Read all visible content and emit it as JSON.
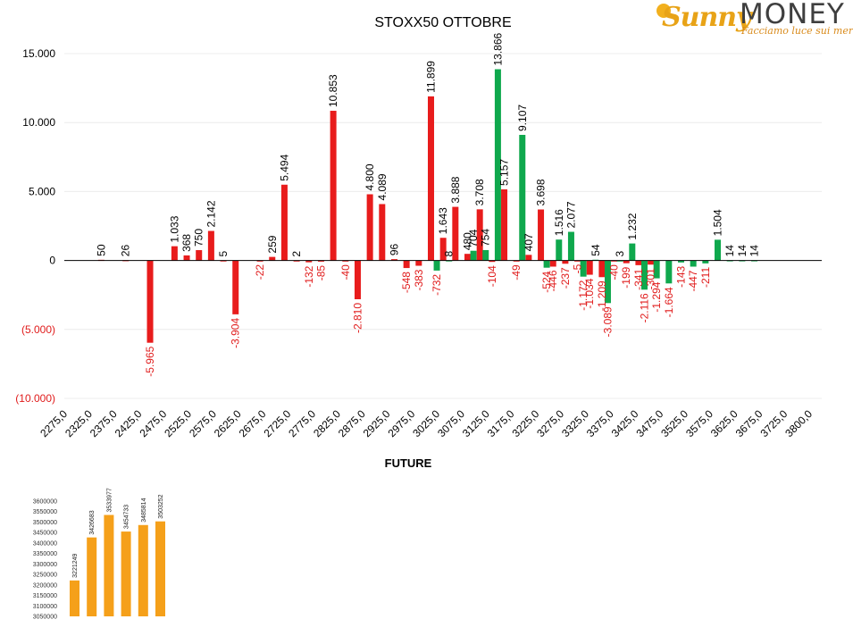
{
  "logo": {
    "brand_a": "Sunny",
    "brand_b": "MONEY",
    "tagline": "Facciamo luce sui mercati"
  },
  "colors": {
    "positive_label": "#000000",
    "negative_label": "#e01b1b",
    "red": "#e81c1c",
    "green": "#0fa84d",
    "orange": "#f5a01a",
    "grid": "#ececec"
  },
  "chart_data": [
    {
      "type": "bar",
      "title": "STOXX50 OTTOBRE",
      "xlabel": "FUTURE",
      "ylabel": "",
      "ylim": [
        -10000,
        15000
      ],
      "y_ticks": [
        {
          "v": 15000,
          "label": "15.000"
        },
        {
          "v": 10000,
          "label": "10.000"
        },
        {
          "v": 5000,
          "label": "5.000"
        },
        {
          "v": 0,
          "label": "0"
        },
        {
          "v": -5000,
          "label": "(5.000)"
        },
        {
          "v": -10000,
          "label": "(10.000)"
        }
      ],
      "categories": [
        "2275,0",
        "2325,0",
        "2375,0",
        "2425,0",
        "2475,0",
        "2525,0",
        "2575,0",
        "2625,0",
        "2675,0",
        "2725,0",
        "2775,0",
        "2825,0",
        "2875,0",
        "2925,0",
        "2975,0",
        "3025,0",
        "3075,0",
        "3125,0",
        "3175,0",
        "3225,0",
        "3275,0",
        "3325,0",
        "3375,0",
        "3425,0",
        "3475,0",
        "3525,0",
        "3575,0",
        "3625,0",
        "3675,0",
        "3725,0",
        "3800,0"
      ],
      "series": [
        {
          "color": "red",
          "points": [
            {
              "x": 2325,
              "y": 50,
              "label": "50"
            },
            {
              "x": 2375,
              "y": 26,
              "label": "26"
            },
            {
              "x": 2425,
              "y": -5965,
              "label": "-5.965"
            },
            {
              "x": 2475,
              "y": 1033,
              "label": "1.033"
            },
            {
              "x": 2500,
              "y": 368,
              "label": "368"
            },
            {
              "x": 2525,
              "y": 750,
              "label": "750"
            },
            {
              "x": 2550,
              "y": 2142,
              "label": "2.142"
            },
            {
              "x": 2575,
              "y": 5,
              "label": "5"
            },
            {
              "x": 2600,
              "y": -3904,
              "label": "-3.904"
            },
            {
              "x": 2650,
              "y": -22,
              "label": "-22"
            },
            {
              "x": 2675,
              "y": 259,
              "label": "259"
            },
            {
              "x": 2700,
              "y": 5494,
              "label": "5.494"
            },
            {
              "x": 2725,
              "y": 2,
              "label": "2"
            },
            {
              "x": 2750,
              "y": -132,
              "label": "-132"
            },
            {
              "x": 2775,
              "y": -85,
              "label": "-85"
            },
            {
              "x": 2800,
              "y": 10853,
              "label": "10.853"
            },
            {
              "x": 2825,
              "y": -40,
              "label": "-40"
            },
            {
              "x": 2850,
              "y": -2810,
              "label": "-2.810"
            },
            {
              "x": 2875,
              "y": 4800,
              "label": "4.800"
            },
            {
              "x": 2900,
              "y": 4089,
              "label": "4.089"
            },
            {
              "x": 2925,
              "y": 96,
              "label": "96"
            },
            {
              "x": 2950,
              "y": -548,
              "label": "-548"
            },
            {
              "x": 2975,
              "y": -383,
              "label": "-383"
            },
            {
              "x": 3000,
              "y": 11899,
              "label": "11.899"
            },
            {
              "x": 3025,
              "y": 1643,
              "label": "1.643"
            },
            {
              "x": 3050,
              "y": 3888,
              "label": "3.888"
            },
            {
              "x": 3075,
              "y": 480,
              "label": "480"
            },
            {
              "x": 3100,
              "y": 3708,
              "label": "3.708"
            },
            {
              "x": 3125,
              "y": -104,
              "label": "-104"
            },
            {
              "x": 3150,
              "y": 5157,
              "label": "5.157"
            },
            {
              "x": 3175,
              "y": -49,
              "label": "-49"
            },
            {
              "x": 3200,
              "y": 407,
              "label": "407"
            },
            {
              "x": 3225,
              "y": 3698,
              "label": "3.698"
            },
            {
              "x": 3250,
              "y": -446,
              "label": "-446"
            },
            {
              "x": 3275,
              "y": -237,
              "label": "-237"
            },
            {
              "x": 3300,
              "y": -5,
              "label": "-5"
            },
            {
              "x": 3325,
              "y": -1034,
              "label": "-1.034"
            },
            {
              "x": 3350,
              "y": -1209,
              "label": "-1.209"
            },
            {
              "x": 3375,
              "y": -40,
              "label": "-40"
            },
            {
              "x": 3400,
              "y": -199,
              "label": "-199"
            },
            {
              "x": 3425,
              "y": -341,
              "label": "-341"
            },
            {
              "x": 3450,
              "y": -301,
              "label": "-301"
            }
          ]
        },
        {
          "color": "green",
          "points": [
            {
              "x": 3012,
              "y": -732,
              "label": "-732"
            },
            {
              "x": 3037,
              "y": 8,
              "label": "8"
            },
            {
              "x": 3087,
              "y": 704,
              "label": "704"
            },
            {
              "x": 3112,
              "y": 754,
              "label": "754"
            },
            {
              "x": 3137,
              "y": 13866,
              "label": "13.866"
            },
            {
              "x": 3187,
              "y": 9107,
              "label": "9.107"
            },
            {
              "x": 3237,
              "y": -524,
              "label": "-524"
            },
            {
              "x": 3262,
              "y": 1516,
              "label": "1.516"
            },
            {
              "x": 3287,
              "y": 2077,
              "label": "2.077"
            },
            {
              "x": 3312,
              "y": -1172,
              "label": "-1.172"
            },
            {
              "x": 3337,
              "y": 54,
              "label": "54"
            },
            {
              "x": 3362,
              "y": -3089,
              "label": "-3.089"
            },
            {
              "x": 3387,
              "y": 3,
              "label": "3"
            },
            {
              "x": 3412,
              "y": 1232,
              "label": "1.232"
            },
            {
              "x": 3437,
              "y": -2116,
              "label": "-2.116"
            },
            {
              "x": 3462,
              "y": -1294,
              "label": "-1.294"
            },
            {
              "x": 3487,
              "y": -1664,
              "label": "-1.664"
            },
            {
              "x": 3512,
              "y": -143,
              "label": "-143"
            },
            {
              "x": 3537,
              "y": -447,
              "label": "-447"
            },
            {
              "x": 3562,
              "y": -211,
              "label": "-211"
            },
            {
              "x": 3587,
              "y": 1504,
              "label": "1.504"
            },
            {
              "x": 3612,
              "y": 14,
              "label": "14"
            },
            {
              "x": 3637,
              "y": 14,
              "label": "14"
            },
            {
              "x": 3662,
              "y": 14,
              "label": "14"
            }
          ]
        }
      ]
    },
    {
      "type": "bar",
      "title": "",
      "ylim": [
        3050000,
        3600000
      ],
      "y_ticks": [
        "3600000",
        "3550000",
        "3500000",
        "3450000",
        "3400000",
        "3350000",
        "3300000",
        "3250000",
        "3200000",
        "3150000",
        "3100000",
        "3050000"
      ],
      "values": [
        3221249,
        3426683,
        3533977,
        3454733,
        3485814,
        3503252
      ],
      "labels": [
        "3221249",
        "3426683",
        "3533977",
        "3454733",
        "3485814",
        "3503252"
      ]
    }
  ]
}
